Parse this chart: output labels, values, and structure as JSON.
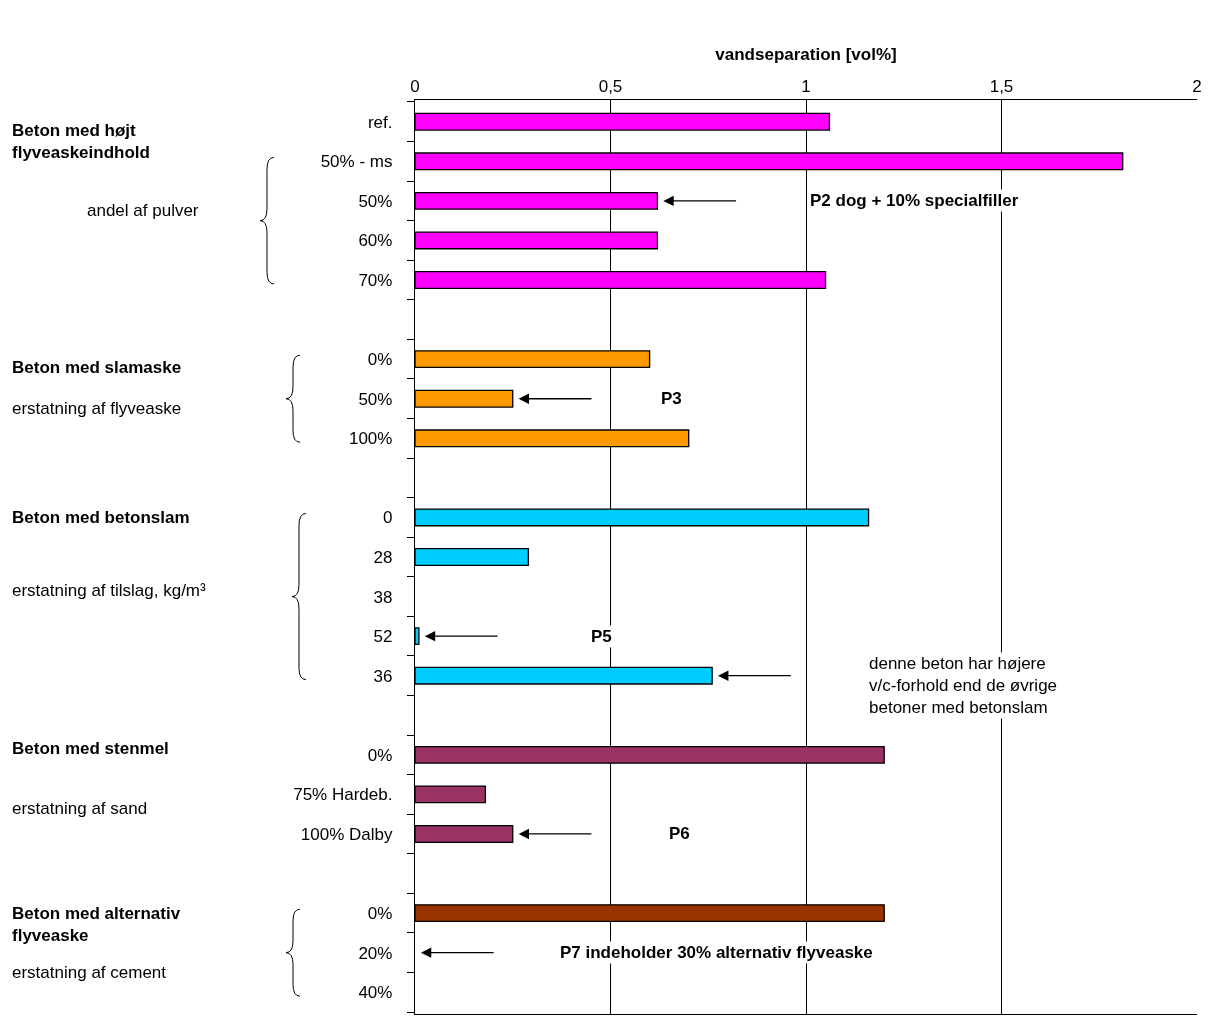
{
  "chart_data": {
    "type": "bar",
    "orientation": "horizontal",
    "xlabel": "vandseparation [vol%]",
    "categories": [
      "ref.",
      "50% - ms",
      "50%",
      "60%",
      "70%",
      null,
      "0%",
      "50%",
      "100%",
      null,
      "0",
      "28",
      "38",
      "52",
      "36",
      null,
      "0%",
      "75% Hardeb.",
      "100% Dalby",
      null,
      "0%",
      "20%",
      "40%"
    ],
    "values": [
      1.06,
      1.81,
      0.62,
      0.62,
      1.05,
      null,
      0.6,
      0.25,
      0.7,
      null,
      1.16,
      0.29,
      null,
      0.01,
      0.76,
      null,
      1.2,
      0.18,
      0.25,
      null,
      1.2,
      null,
      null
    ],
    "colors": [
      "#ff00ff",
      "#ff00ff",
      "#ff00ff",
      "#ff00ff",
      "#ff00ff",
      null,
      "#ff9900",
      "#ff9900",
      "#ff9900",
      null,
      "#00ccff",
      "#00ccff",
      "#00ccff",
      "#00ccff",
      "#00ccff",
      null,
      "#993366",
      "#993366",
      "#993366",
      null,
      "#993300",
      "#993300",
      "#993300"
    ],
    "xlim": [
      0,
      2
    ],
    "xticks": [
      0,
      {
        "value": 0.5,
        "label": "0,5"
      },
      1,
      {
        "value": 1.5,
        "label": "1,5"
      },
      2
    ],
    "grid": "x",
    "legend": false,
    "annotations": [
      "Beton med højt flyveaskeindhold",
      "andel af pulver",
      "Beton med slamaske",
      "erstatning af flyveaske",
      "Beton med betonslam",
      "erstatning af tilslag, kg/m³",
      "Beton med stenmel",
      "erstatning af sand",
      "Beton med alternativ flyveaske",
      "erstatning af cement",
      "P2 dog + 10% specialfiller",
      "P3",
      "P5",
      "denne beton har højere v/c-forhold end de øvrige betoner med betonslam",
      "P6",
      "P7 indeholder 30% alternativ flyveaske"
    ]
  }
}
